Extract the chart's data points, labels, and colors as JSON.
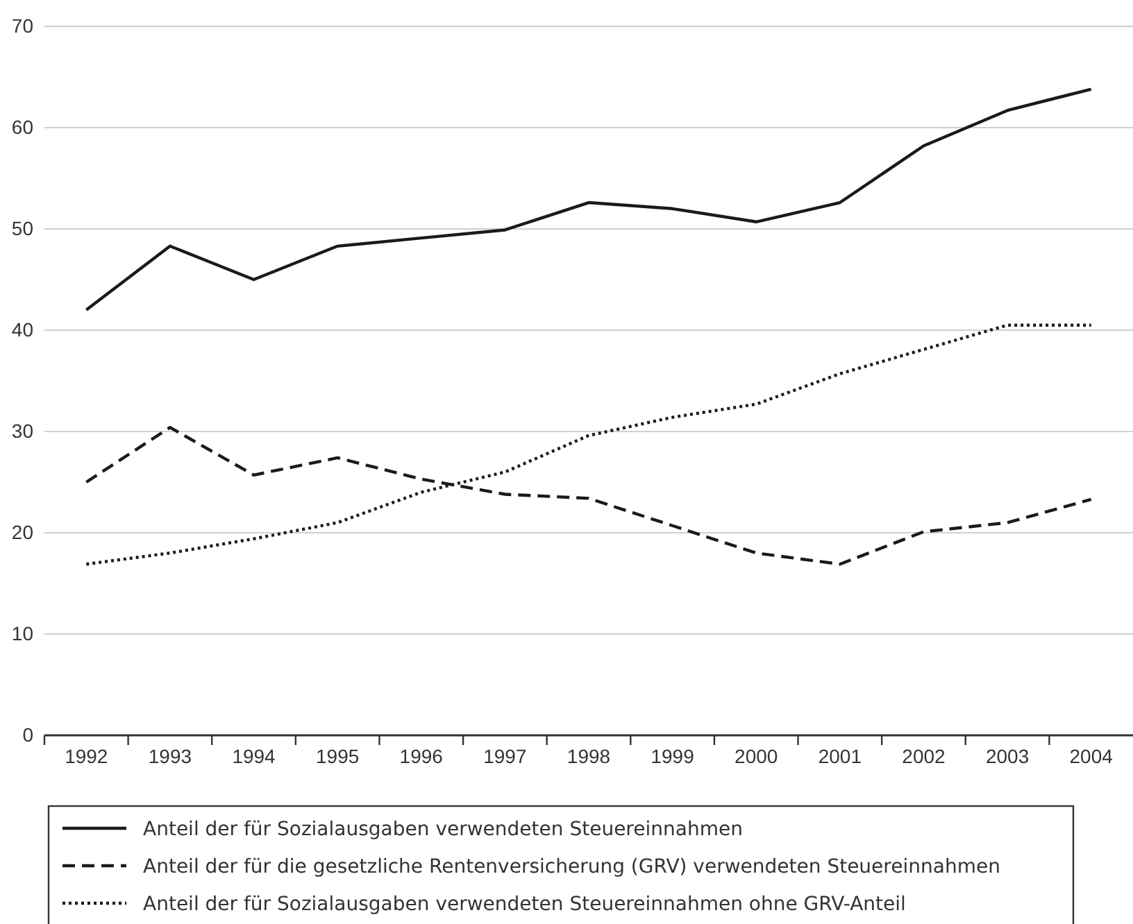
{
  "chart_data": {
    "type": "line",
    "categories": [
      "1992",
      "1993",
      "1994",
      "1995",
      "1996",
      "1997",
      "1998",
      "1999",
      "2000",
      "2001",
      "2002",
      "2003",
      "2004"
    ],
    "ylim": [
      0,
      70
    ],
    "yticks": [
      0,
      10,
      20,
      30,
      40,
      50,
      60,
      70
    ],
    "grid": "y",
    "legend": "bottom",
    "marker": "none",
    "series": [
      {
        "name": "Anteil der für Sozialausgaben verwendeten Steuereinnahmen",
        "color": "#1a1a1a",
        "line_style": "solid",
        "values": [
          42,
          48.3,
          45,
          48.3,
          49.1,
          49.9,
          52.6,
          52,
          50.7,
          52.6,
          58.2,
          61.7,
          63.8
        ]
      },
      {
        "name": "Anteil der für die gesetzliche Rentenversicherung (GRV) verwendeten Steuereinnahmen",
        "color": "#1a1a1a",
        "line_style": "dashed",
        "values": [
          25,
          30.4,
          25.7,
          27.4,
          25.3,
          23.8,
          23.4,
          20.7,
          18,
          16.9,
          20.1,
          21,
          23.3
        ]
      },
      {
        "name": "Anteil der für Sozialausgaben verwendeten Steuereinnahmen ohne GRV-Anteil",
        "color": "#1a1a1a",
        "line_style": "dotted",
        "values": [
          16.9,
          18,
          19.4,
          21,
          24,
          26,
          29.6,
          31.4,
          32.7,
          35.7,
          38.1,
          40.5,
          40.5
        ]
      }
    ]
  }
}
